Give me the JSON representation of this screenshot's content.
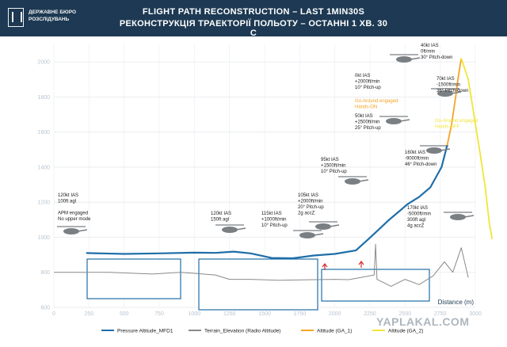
{
  "header": {
    "org_line1": "ДЕРЖАВНЕ БЮРО",
    "org_line2": "РОЗСЛІДУВАНЬ",
    "title_en": "FLIGHT PATH RECONSTRUCTION – LAST 1MIN30S",
    "title_ua": "РЕКОНСТРУКЦІЯ ТРАЕКТОРІЇ ПОЛЬОТУ – ОСТАННІ 1 ХВ. 30 С"
  },
  "watermark": "YAPLAKAL.COM",
  "colors": {
    "background": "#1d3953",
    "plot_bg": "#ffffff",
    "pressure": "#1f6ea8",
    "terrain": "#8a8a8a",
    "ga1": "#f5a425",
    "ga2": "#f0e53a"
  },
  "chart_data": {
    "type": "line",
    "xlabel": "Distance (m)",
    "ylabel": "",
    "xlim": [
      0,
      3000
    ],
    "ylim": [
      600,
      2100
    ],
    "x_ticks": [
      "0",
      "250",
      "500",
      "750",
      "1000",
      "1250",
      "1500",
      "1750",
      "2000",
      "2250",
      "2500",
      "2750",
      "3000"
    ],
    "y_ticks": [
      "600",
      "800",
      "1000",
      "1200",
      "1400",
      "1600",
      "1800",
      "2000"
    ],
    "grid": true,
    "legend": "bottom",
    "series": [
      {
        "name": "Pressure Altitude_MFD1",
        "points": [
          [
            230,
            910
          ],
          [
            500,
            905
          ],
          [
            750,
            908
          ],
          [
            1000,
            912
          ],
          [
            1150,
            911
          ],
          [
            1280,
            918
          ],
          [
            1400,
            908
          ],
          [
            1550,
            882
          ],
          [
            1700,
            880
          ],
          [
            1850,
            896
          ],
          [
            2000,
            905
          ],
          [
            2150,
            925
          ],
          [
            2260,
            1005
          ],
          [
            2380,
            1095
          ],
          [
            2520,
            1190
          ],
          [
            2600,
            1230
          ],
          [
            2680,
            1285
          ],
          [
            2760,
            1400
          ],
          [
            2800,
            1525
          ]
        ]
      },
      {
        "name": "Terrain_Elevation (Radio Altitude)",
        "points": [
          [
            0,
            800
          ],
          [
            400,
            800
          ],
          [
            700,
            790
          ],
          [
            900,
            800
          ],
          [
            1150,
            785
          ],
          [
            1250,
            760
          ],
          [
            1400,
            760
          ],
          [
            1600,
            755
          ],
          [
            2000,
            760
          ],
          [
            2100,
            758
          ],
          [
            2280,
            785
          ],
          [
            2290,
            960
          ],
          [
            2300,
            760
          ],
          [
            2400,
            720
          ],
          [
            2500,
            760
          ],
          [
            2600,
            730
          ],
          [
            2700,
            780
          ],
          [
            2780,
            860
          ],
          [
            2840,
            800
          ],
          [
            2900,
            940
          ],
          [
            2950,
            770
          ]
        ]
      },
      {
        "name": "Altitude (GA_1)",
        "points": [
          [
            2800,
            1525
          ],
          [
            2830,
            1640
          ],
          [
            2860,
            1800
          ],
          [
            2880,
            1920
          ],
          [
            2900,
            2020
          ]
        ]
      },
      {
        "name": "Altitude (GA_2)",
        "points": [
          [
            2900,
            2020
          ],
          [
            2950,
            1900
          ],
          [
            2990,
            1700
          ],
          [
            3030,
            1500
          ],
          [
            3070,
            1290
          ],
          [
            3100,
            1080
          ],
          [
            3120,
            990
          ]
        ]
      }
    ],
    "annotations": [
      {
        "lines": [
          "120kt IAS",
          "100ft agl",
          "",
          "APM engaged",
          "No upper mode"
        ]
      },
      {
        "lines": [
          "120kt IAS",
          "150ft agl"
        ]
      },
      {
        "lines": [
          "115kt IAS",
          "+1000ft/min",
          "10° Pitch-up"
        ]
      },
      {
        "lines": [
          "105kt IAS",
          "+2000ft/min",
          "20° Pitch-up",
          "2g accZ"
        ]
      },
      {
        "lines": [
          "95kt IAS",
          "+1500ft/min",
          "10° Pitch-up"
        ]
      },
      {
        "lines": [
          "50kt IAS",
          "+2500ft/min",
          "25° Pitch-up"
        ]
      },
      {
        "lines": [
          "0kt IAS",
          "+2000ft/min",
          "10° Pitch-up"
        ]
      },
      {
        "lines": [
          "40kt IAS",
          "0ft/min",
          "30° Pitch-down"
        ]
      },
      {
        "lines": [
          "70kt IAS",
          "-1500ft/min",
          "36° Pitch-down"
        ]
      },
      {
        "lines": [
          "160kt IAS",
          "-9000ft/min",
          "46° Pitch-down"
        ]
      },
      {
        "lines": [
          "170kt IAS",
          "-5000ft/min",
          "300ft agl",
          "4g accZ"
        ]
      }
    ],
    "ga_labels": {
      "ga1": [
        "Go-Around engaged",
        "Hands-ON"
      ],
      "ga2": [
        "Go-Around engaged",
        "Hands-OFF"
      ]
    },
    "zones": [
      {
        "en": "Flight above forest",
        "ua": "Політ над лісом"
      },
      {
        "en": "Residental area",
        "en2": "Houses of 1-2 floors",
        "ua": "Житлова площа",
        "ua2": "Будинки 1-2 поверхи"
      },
      {
        "en": "2 buildings 25 floors",
        "ua": "2 будинки 25 поверхів"
      }
    ],
    "legend_labels": [
      "Pressure Altitude_MFD1",
      "Terrain_Elevation (Radio Altitude)",
      "Altitude (GA_1)",
      "Altitude (GA_2)"
    ]
  }
}
